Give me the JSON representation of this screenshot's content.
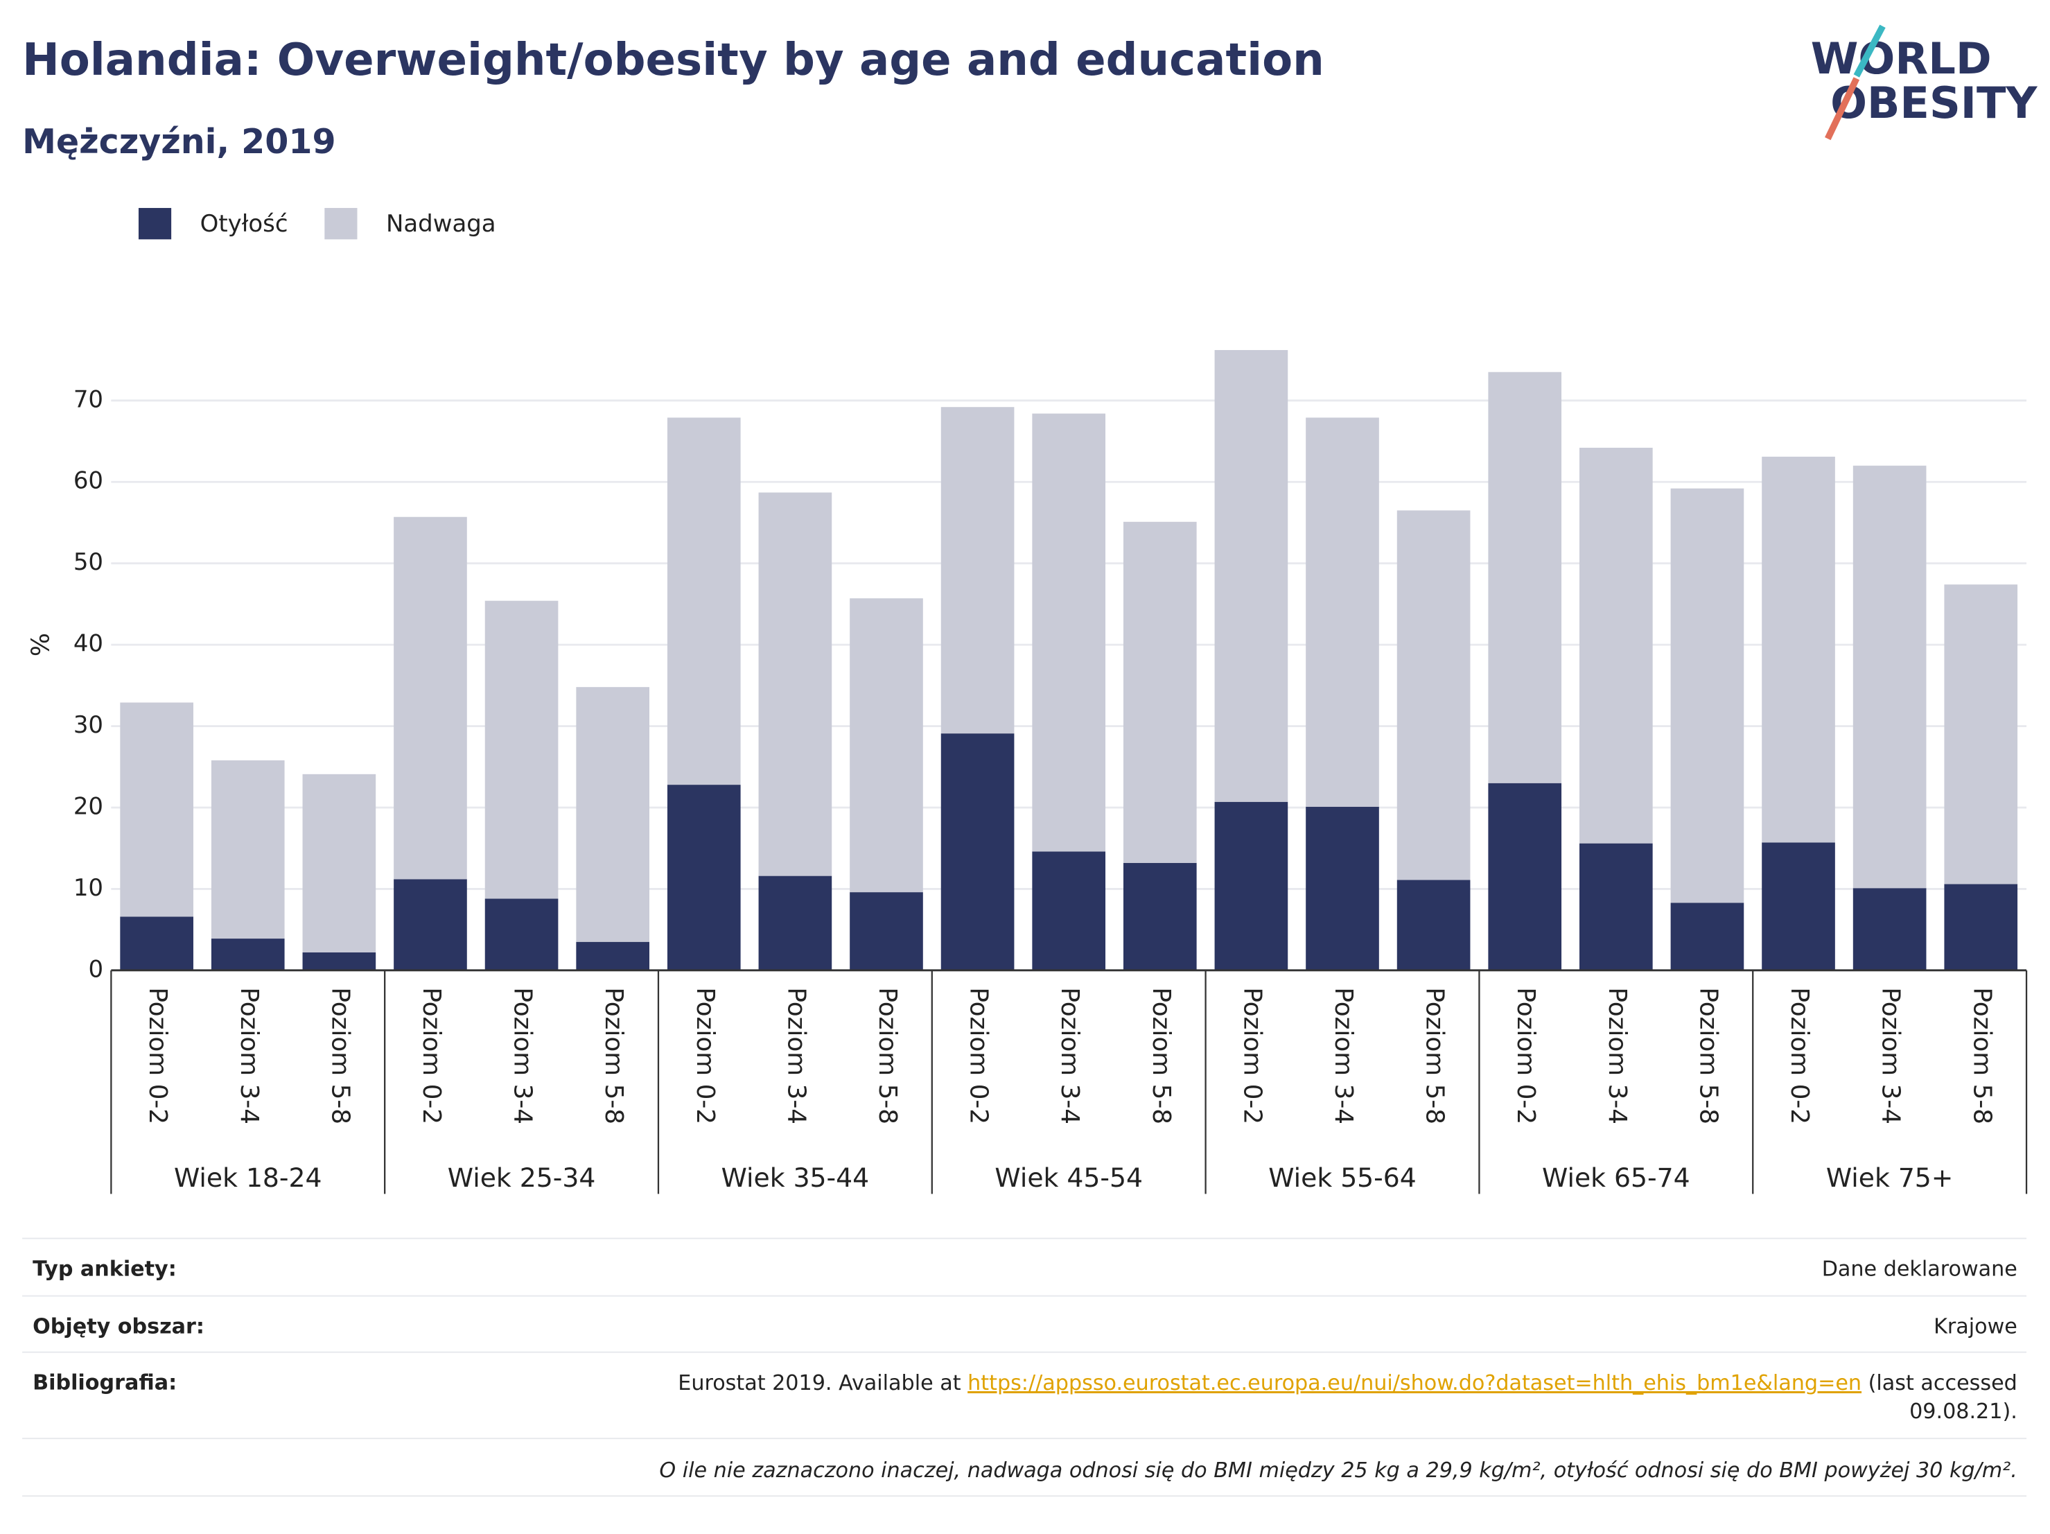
{
  "chart_data": {
    "type": "stacked_bar",
    "title": "Holandia: Overweight/obesity by age and education",
    "subtitle": "Mężczyźni, 2019",
    "y_label": "%",
    "categories": [
      "Poziom 0-2",
      "Poziom 3-4",
      "Poziom 5-8",
      "Poziom 0-2",
      "Poziom 3-4",
      "Poziom 5-8",
      "Poziom 0-2",
      "Poziom 3-4",
      "Poziom 5-8",
      "Poziom 0-2",
      "Poziom 3-4",
      "Poziom 5-8",
      "Poziom 0-2",
      "Poziom 3-4",
      "Poziom 5-8",
      "Poziom 0-2",
      "Poziom 3-4",
      "Poziom 5-8",
      "Poziom 0-2",
      "Poziom 3-4",
      "Poziom 5-8"
    ],
    "groups": [
      "Wiek 18-24",
      "Wiek 25-34",
      "Wiek 35-44",
      "Wiek 45-54",
      "Wiek 55-64",
      "Wiek 65-74",
      "Wiek 75+"
    ],
    "series": [
      {
        "name": "Otyłość",
        "color": "#2b3561",
        "values": [
          6.6,
          3.9,
          2.2,
          11.2,
          8.8,
          3.5,
          22.8,
          11.6,
          9.6,
          29.1,
          14.6,
          13.2,
          20.7,
          20.1,
          11.1,
          23.0,
          15.6,
          8.3,
          15.7,
          10.1,
          10.6
        ]
      },
      {
        "name": "Nadwaga",
        "color": "#c9cbd7",
        "values": [
          26.3,
          21.9,
          21.9,
          44.5,
          36.6,
          31.3,
          45.1,
          47.1,
          36.1,
          40.1,
          53.8,
          41.9,
          55.5,
          47.8,
          45.4,
          50.5,
          48.6,
          50.9,
          47.4,
          51.9,
          36.8
        ]
      }
    ],
    "ylim": [
      0,
      80
    ],
    "yticks": [
      0,
      10,
      20,
      30,
      40,
      50,
      60,
      70
    ],
    "grid": true
  },
  "logo": [
    "WORLD",
    "OBESITY"
  ],
  "footer": {
    "rows": [
      {
        "label": "Typ ankiety:",
        "value": "Dane deklarowane"
      },
      {
        "label": "Objęty obszar:",
        "value": "Krajowe"
      }
    ],
    "bibliography": {
      "label": "Bibliografia:",
      "text_before": "Eurostat 2019. Available at ",
      "link": "https://appsso.eurostat.ec.europa.eu/nui/show.do?dataset=hlth_ehis_bm1e&lang=en",
      "text_after": " (last accessed",
      "text_after_2": "09.08.21)."
    },
    "note": "O ile nie zaznaczono inaczej, nadwaga odnosi się do BMI między 25 kg a 29,9 kg/m², otyłość odnosi się do BMI powyżej 30 kg/m²."
  }
}
